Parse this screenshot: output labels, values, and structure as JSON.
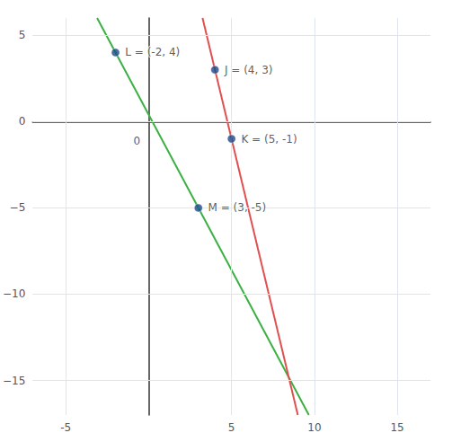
{
  "chart_data": {
    "type": "scatter",
    "series": [
      {
        "type": "scatter",
        "color": "#1a4a8a",
        "x": [
          -2,
          3,
          4,
          5
        ],
        "values": [
          4,
          -5,
          3,
          -1
        ],
        "value_labels": [
          "L = (-2, 4)",
          "M = (3, -5)",
          "J = (4, 3)",
          "K = (5, -1)"
        ]
      },
      {
        "type": "line",
        "color": "#3cb043",
        "x": [
          -3.111111,
          9.666667
        ],
        "values": [
          6,
          -17
        ]
      },
      {
        "type": "line",
        "color": "#e05050",
        "x": [
          3.25,
          9
        ],
        "values": [
          6,
          -17
        ]
      }
    ],
    "data_labels": true,
    "annotations": [
      {
        "text": "0",
        "x": -0.5,
        "y": -0.8
      }
    ],
    "xlim": [
      -7,
      17
    ],
    "ylim": [
      -17,
      6
    ],
    "xticks": [
      -5,
      5,
      10,
      15
    ],
    "yticks": [
      {
        "value": -15,
        "label": "−15"
      },
      {
        "value": -10,
        "label": "−10"
      },
      {
        "value": -5,
        "label": "−5"
      },
      0,
      5
    ],
    "grid": true
  }
}
